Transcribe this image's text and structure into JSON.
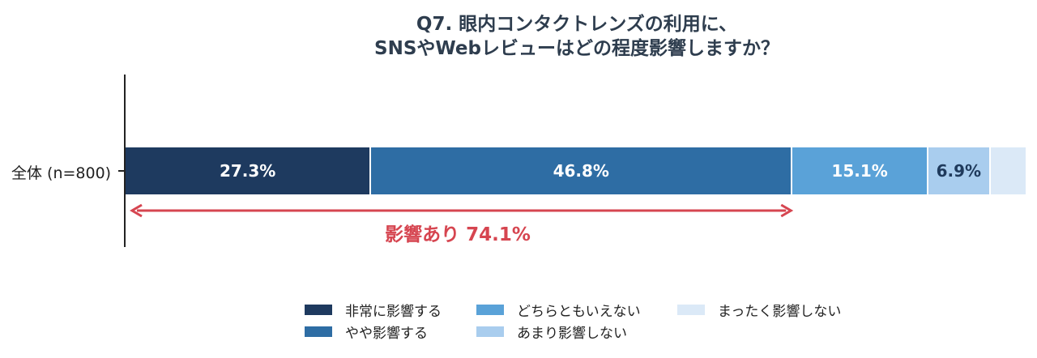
{
  "chart_data": {
    "type": "stacked-bar-horizontal",
    "title_lines": [
      "Q7. 眼内コンタクトレンズの利用に、",
      "SNSやWebレビューはどの程度影響しますか？"
    ],
    "categories": [
      "全体 (n=800)"
    ],
    "xlim": [
      0,
      100
    ],
    "series": [
      {
        "name": "非常に影響する",
        "value": 27.3,
        "label": "27.3%",
        "color": "#1e3a5f",
        "label_color": "#ffffff"
      },
      {
        "name": "やや影響する",
        "value": 46.8,
        "label": "46.8%",
        "color": "#2e6da4",
        "label_color": "#ffffff"
      },
      {
        "name": "どちらともいえない",
        "value": 15.1,
        "label": "15.1%",
        "color": "#5aa2d8",
        "label_color": "#ffffff"
      },
      {
        "name": "あまり影響しない",
        "value": 6.9,
        "label": "6.9%",
        "color": "#a9cdee",
        "label_color": "#1f3a5c"
      },
      {
        "name": "まったく影響しない",
        "value": 3.9,
        "label": "",
        "color": "#dbe9f7",
        "label_color": "#1f3a5c"
      }
    ],
    "annotation": {
      "text": "影響あり 74.1%",
      "value": 74.1,
      "color": "#d64550"
    },
    "legend_position": "bottom-center"
  }
}
